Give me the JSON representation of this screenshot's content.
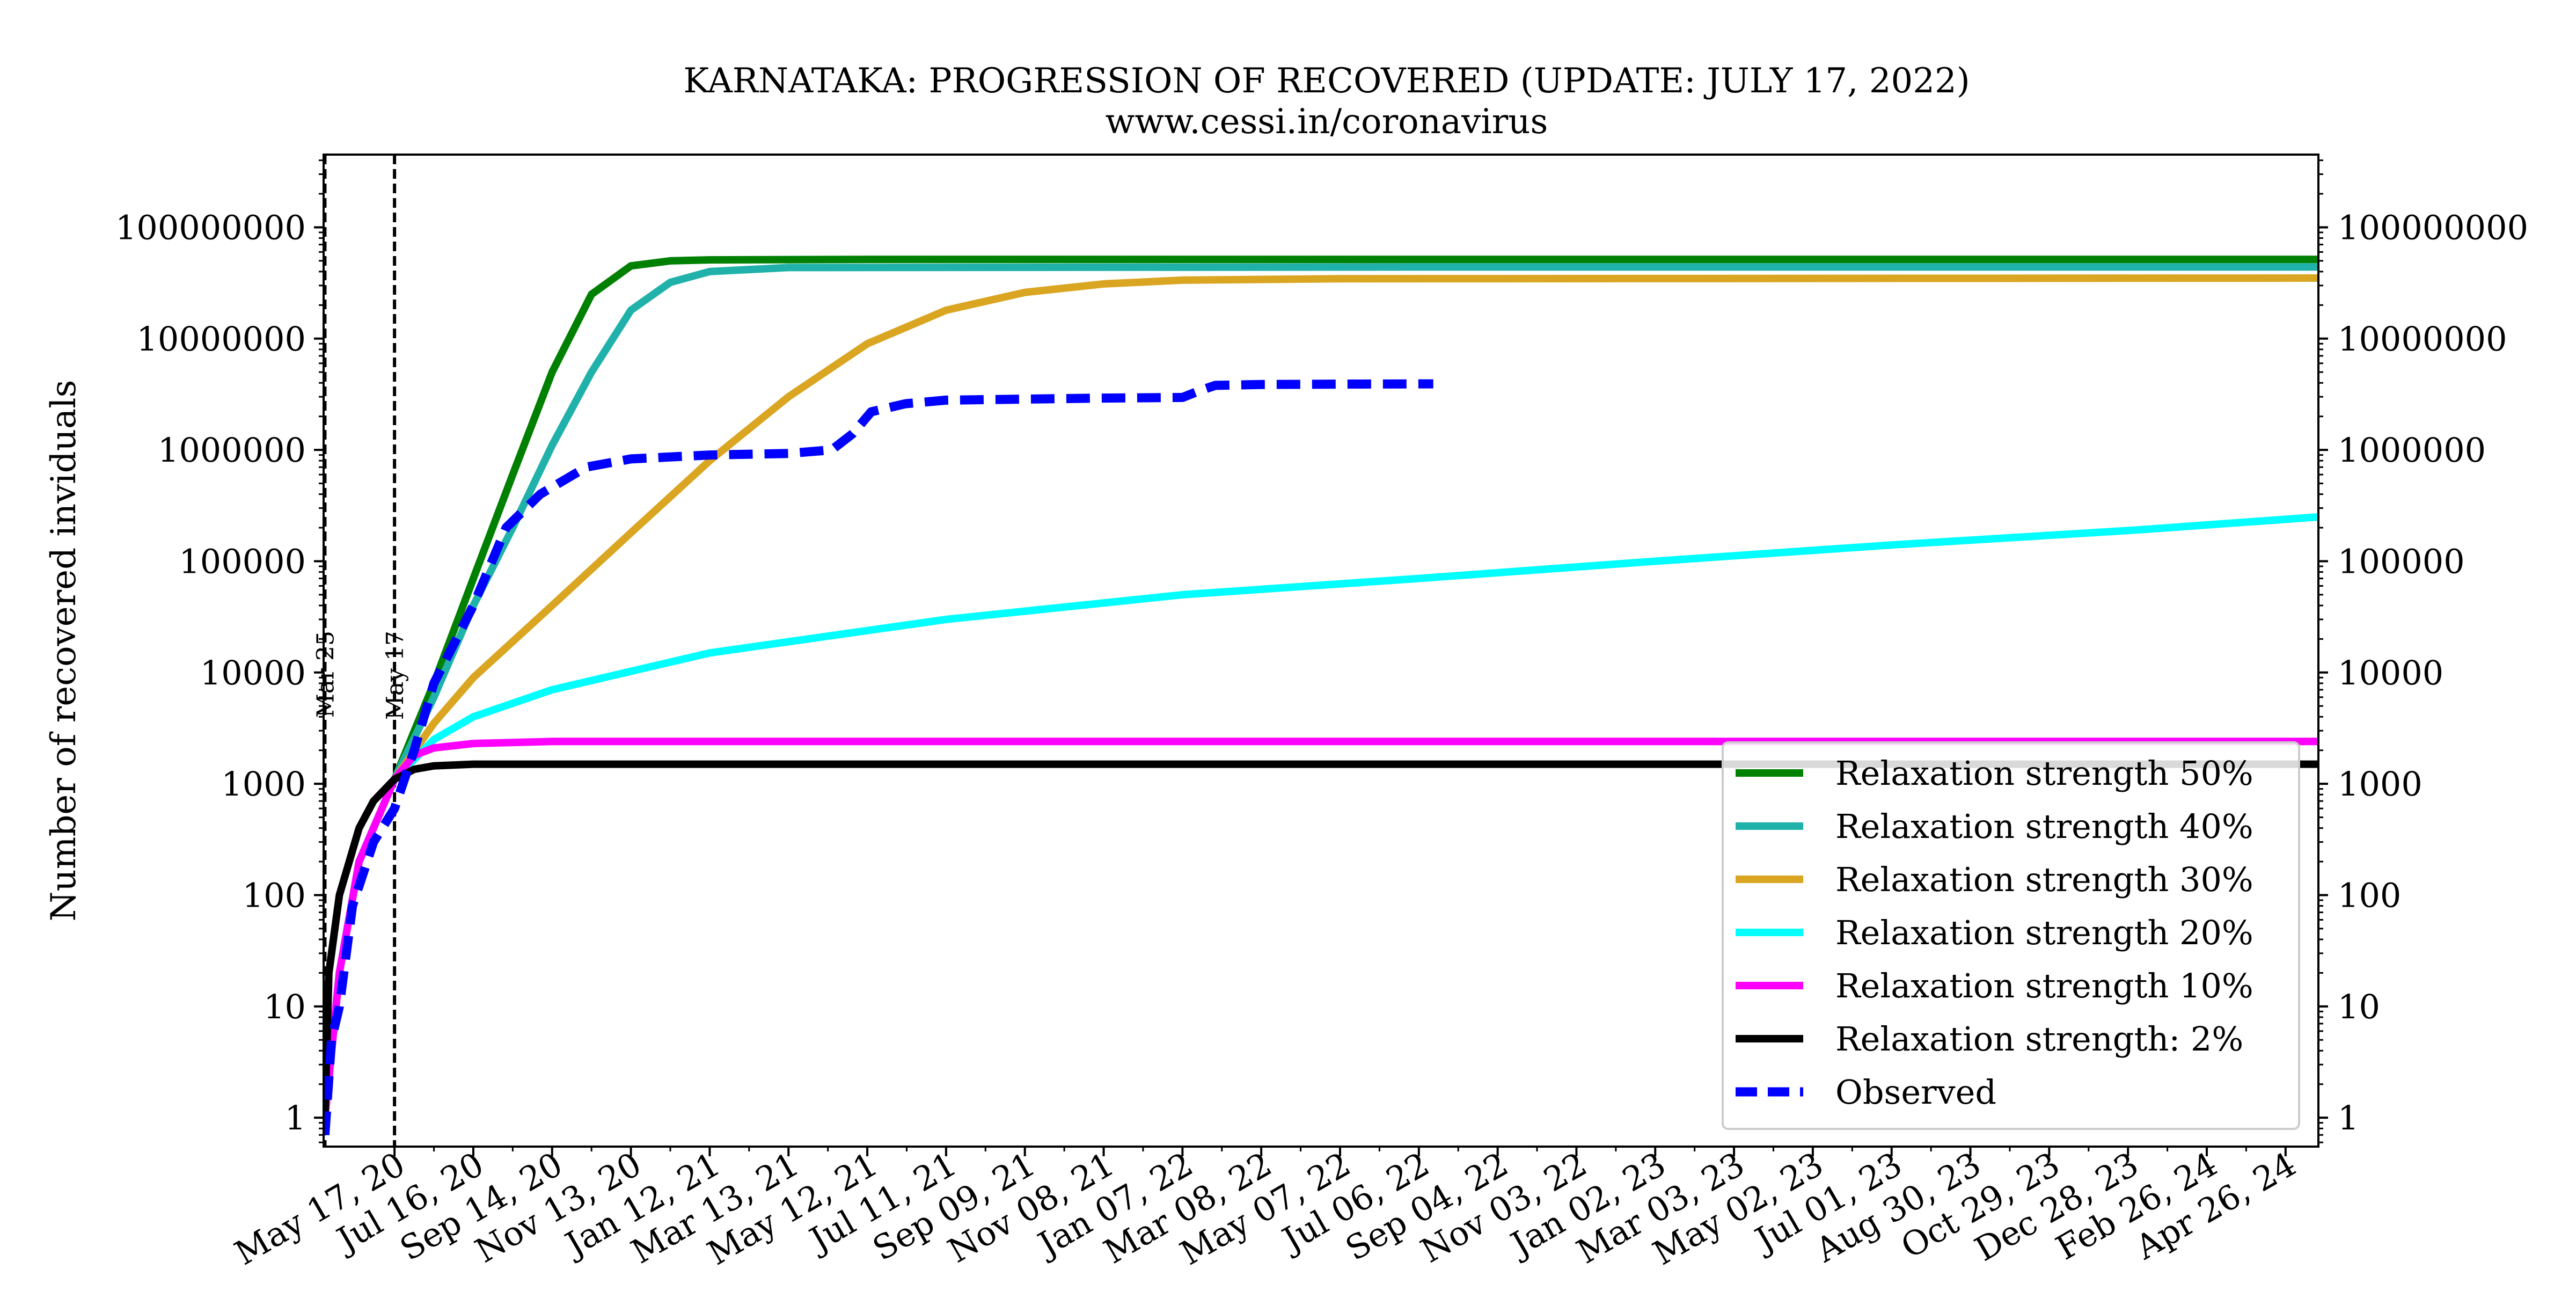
{
  "chart_data": {
    "type": "line",
    "title": "KARNATAKA: PROGRESSION OF RECOVERED (UPDATE: JULY 17, 2022)",
    "subtitle": "www.cessi.in/coronavirus",
    "xlabel": "",
    "ylabel": "Number of recovered inviduals",
    "yscale": "log",
    "ylim": [
      0.55,
      450000000
    ],
    "xlim": [
      "2020-03-24",
      "2024-05-21"
    ],
    "yticks": [
      "1",
      "10",
      "100",
      "1000",
      "10000",
      "100000",
      "1000000",
      "10000000",
      "100000000"
    ],
    "y_right_axis_mirrored": true,
    "xticks": [
      {
        "date": "2020-05-17",
        "label": "May 17, 20"
      },
      {
        "date": "2020-07-16",
        "label": "Jul 16, 20"
      },
      {
        "date": "2020-09-14",
        "label": "Sep 14, 20"
      },
      {
        "date": "2020-11-13",
        "label": "Nov 13, 20"
      },
      {
        "date": "2021-01-12",
        "label": "Jan 12, 21"
      },
      {
        "date": "2021-03-13",
        "label": "Mar 13, 21"
      },
      {
        "date": "2021-05-12",
        "label": "May 12, 21"
      },
      {
        "date": "2021-07-11",
        "label": "Jul 11, 21"
      },
      {
        "date": "2021-09-09",
        "label": "Sep 09, 21"
      },
      {
        "date": "2021-11-08",
        "label": "Nov 08, 21"
      },
      {
        "date": "2022-01-07",
        "label": "Jan 07, 22"
      },
      {
        "date": "2022-03-08",
        "label": "Mar 08, 22"
      },
      {
        "date": "2022-05-07",
        "label": "May 07, 22"
      },
      {
        "date": "2022-07-06",
        "label": "Jul 06, 22"
      },
      {
        "date": "2022-09-04",
        "label": "Sep 04, 22"
      },
      {
        "date": "2022-11-03",
        "label": "Nov 03, 22"
      },
      {
        "date": "2023-01-02",
        "label": "Jan 02, 23"
      },
      {
        "date": "2023-03-03",
        "label": "Mar 03, 23"
      },
      {
        "date": "2023-05-02",
        "label": "May 02, 23"
      },
      {
        "date": "2023-07-01",
        "label": "Jul 01, 23"
      },
      {
        "date": "2023-08-30",
        "label": "Aug 30, 23"
      },
      {
        "date": "2023-10-29",
        "label": "Oct 29, 23"
      },
      {
        "date": "2023-12-28",
        "label": "Dec 28, 23"
      },
      {
        "date": "2024-02-26",
        "label": "Feb 26, 24"
      },
      {
        "date": "2024-04-26",
        "label": "Apr 26, 24"
      }
    ],
    "vertical_lines": [
      {
        "date": "2020-03-25",
        "label": "Mar 25"
      },
      {
        "date": "2020-05-17",
        "label": "May 17"
      }
    ],
    "legend_position": "lower-right",
    "grid": false,
    "series": [
      {
        "name": "Relaxation strength 50%",
        "color": "#008000",
        "style": "solid",
        "points": [
          [
            "2020-03-25",
            1
          ],
          [
            "2020-04-05",
            20
          ],
          [
            "2020-04-20",
            200
          ],
          [
            "2020-05-17",
            1100
          ],
          [
            "2020-06-16",
            8000
          ],
          [
            "2020-07-16",
            70000
          ],
          [
            "2020-08-15",
            600000
          ],
          [
            "2020-09-14",
            5000000
          ],
          [
            "2020-10-14",
            25000000
          ],
          [
            "2020-11-13",
            45000000
          ],
          [
            "2020-12-13",
            50000000
          ],
          [
            "2021-01-12",
            51000000
          ],
          [
            "2021-05-12",
            51500000
          ],
          [
            "2022-07-06",
            51500000
          ],
          [
            "2024-05-21",
            51500000
          ]
        ]
      },
      {
        "name": "Relaxation strength 40%",
        "color": "#20b2aa",
        "style": "solid",
        "points": [
          [
            "2020-03-25",
            1
          ],
          [
            "2020-04-05",
            20
          ],
          [
            "2020-04-20",
            200
          ],
          [
            "2020-05-17",
            1100
          ],
          [
            "2020-06-16",
            6000
          ],
          [
            "2020-07-16",
            40000
          ],
          [
            "2020-08-15",
            200000
          ],
          [
            "2020-09-14",
            1100000
          ],
          [
            "2020-10-14",
            5000000
          ],
          [
            "2020-11-13",
            18000000
          ],
          [
            "2020-12-13",
            32000000
          ],
          [
            "2021-01-12",
            40000000
          ],
          [
            "2021-03-13",
            43500000
          ],
          [
            "2022-07-06",
            44000000
          ],
          [
            "2024-05-21",
            44000000
          ]
        ]
      },
      {
        "name": "Relaxation strength 30%",
        "color": "#daa520",
        "style": "solid",
        "points": [
          [
            "2020-03-25",
            1
          ],
          [
            "2020-04-05",
            20
          ],
          [
            "2020-04-20",
            200
          ],
          [
            "2020-05-17",
            1100
          ],
          [
            "2020-06-16",
            3500
          ],
          [
            "2020-07-16",
            9000
          ],
          [
            "2020-09-14",
            40000
          ],
          [
            "2020-11-13",
            180000
          ],
          [
            "2021-01-12",
            800000
          ],
          [
            "2021-03-13",
            3000000
          ],
          [
            "2021-05-12",
            9000000
          ],
          [
            "2021-07-11",
            18000000
          ],
          [
            "2021-09-09",
            26000000
          ],
          [
            "2021-11-08",
            31000000
          ],
          [
            "2022-01-07",
            33500000
          ],
          [
            "2022-05-07",
            34500000
          ],
          [
            "2024-05-21",
            35000000
          ]
        ]
      },
      {
        "name": "Relaxation strength 20%",
        "color": "#00ffff",
        "style": "solid",
        "points": [
          [
            "2020-03-25",
            1
          ],
          [
            "2020-04-05",
            20
          ],
          [
            "2020-04-20",
            200
          ],
          [
            "2020-05-17",
            1100
          ],
          [
            "2020-06-16",
            2500
          ],
          [
            "2020-07-16",
            4000
          ],
          [
            "2020-09-14",
            7000
          ],
          [
            "2021-01-12",
            15000
          ],
          [
            "2021-07-11",
            30000
          ],
          [
            "2022-01-07",
            50000
          ],
          [
            "2022-07-06",
            70000
          ],
          [
            "2023-01-02",
            100000
          ],
          [
            "2023-07-01",
            140000
          ],
          [
            "2024-01-01",
            190000
          ],
          [
            "2024-05-21",
            250000
          ]
        ]
      },
      {
        "name": "Relaxation strength 10%",
        "color": "#ff00ff",
        "style": "solid",
        "points": [
          [
            "2020-03-25",
            1
          ],
          [
            "2020-04-05",
            20
          ],
          [
            "2020-04-20",
            200
          ],
          [
            "2020-05-17",
            1100
          ],
          [
            "2020-06-01",
            1800
          ],
          [
            "2020-06-16",
            2100
          ],
          [
            "2020-07-16",
            2300
          ],
          [
            "2020-09-14",
            2400
          ],
          [
            "2024-05-21",
            2400
          ]
        ]
      },
      {
        "name": "Relaxation strength: 2%",
        "color": "#000000",
        "style": "solid",
        "points": [
          [
            "2020-03-25",
            1
          ],
          [
            "2020-03-28",
            20
          ],
          [
            "2020-04-05",
            100
          ],
          [
            "2020-04-20",
            400
          ],
          [
            "2020-05-01",
            700
          ],
          [
            "2020-05-17",
            1100
          ],
          [
            "2020-06-01",
            1350
          ],
          [
            "2020-06-16",
            1450
          ],
          [
            "2020-07-16",
            1500
          ],
          [
            "2024-05-21",
            1500
          ]
        ]
      },
      {
        "name": "Observed",
        "color": "#0000ff",
        "style": "dashed",
        "points": [
          [
            "2020-03-25",
            0.7
          ],
          [
            "2020-03-30",
            5
          ],
          [
            "2020-04-05",
            10
          ],
          [
            "2020-04-15",
            80
          ],
          [
            "2020-05-01",
            300
          ],
          [
            "2020-05-17",
            600
          ],
          [
            "2020-06-01",
            2000
          ],
          [
            "2020-06-16",
            8000
          ],
          [
            "2020-07-16",
            40000
          ],
          [
            "2020-08-10",
            200000
          ],
          [
            "2020-09-05",
            400000
          ],
          [
            "2020-10-10",
            700000
          ],
          [
            "2020-11-13",
            830000
          ],
          [
            "2021-01-12",
            900000
          ],
          [
            "2021-03-13",
            930000
          ],
          [
            "2021-04-15",
            1000000
          ],
          [
            "2021-05-01",
            1400000
          ],
          [
            "2021-05-15",
            2200000
          ],
          [
            "2021-06-10",
            2600000
          ],
          [
            "2021-07-11",
            2800000
          ],
          [
            "2021-11-08",
            2920000
          ],
          [
            "2022-01-07",
            2960000
          ],
          [
            "2022-01-20",
            3400000
          ],
          [
            "2022-02-01",
            3800000
          ],
          [
            "2022-03-08",
            3870000
          ],
          [
            "2022-05-07",
            3900000
          ],
          [
            "2022-07-17",
            3920000
          ]
        ]
      }
    ]
  }
}
